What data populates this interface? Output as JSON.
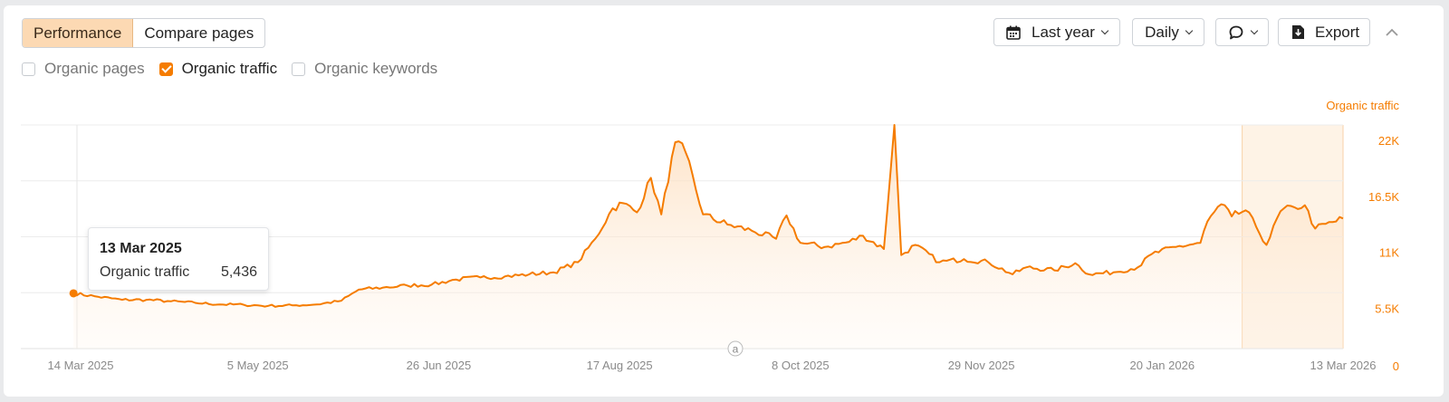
{
  "toolbar": {
    "tabs": [
      {
        "label": "Performance",
        "active": true
      },
      {
        "label": "Compare pages",
        "active": false
      }
    ],
    "period_label": "Last year",
    "interval_label": "Daily",
    "export_label": "Export"
  },
  "metrics": [
    {
      "label": "Organic pages",
      "checked": false
    },
    {
      "label": "Organic traffic",
      "checked": true
    },
    {
      "label": "Organic keywords",
      "checked": false
    }
  ],
  "tooltip": {
    "date": "13 Mar 2025",
    "metric": "Organic traffic",
    "value": "5,436"
  },
  "annotation_marker": "a",
  "colors": {
    "accent": "#f57c00",
    "fill": "#fde3c6",
    "grid": "#ececec"
  },
  "chart_data": {
    "type": "area",
    "series": [
      {
        "name": "Organic traffic"
      }
    ],
    "y_axis_title": "Organic traffic",
    "y_axis_position": "right",
    "ylim": [
      0,
      22000
    ],
    "y_ticks": [
      0,
      5500,
      11000,
      16500,
      22000
    ],
    "y_tick_labels": [
      "0",
      "5.5K",
      "11K",
      "16.5K",
      "22K"
    ],
    "x_tick_labels": [
      "14 Mar 2025",
      "5 May 2025",
      "26 Jun 2025",
      "17 Aug 2025",
      "8 Oct 2025",
      "29 Nov 2025",
      "20 Jan 2026",
      "13 Mar 2026"
    ],
    "x_tick_dates": [
      "2025-03-14",
      "2025-05-05",
      "2025-06-26",
      "2025-08-17",
      "2025-10-08",
      "2025-11-29",
      "2026-01-20",
      "2026-03-13"
    ],
    "highlight_range": [
      "2026-02-12",
      "2026-03-13"
    ],
    "points": [
      [
        "2025-03-13",
        5436
      ],
      [
        "2025-03-20",
        5100
      ],
      [
        "2025-03-27",
        4800
      ],
      [
        "2025-04-03",
        4800
      ],
      [
        "2025-04-10",
        4650
      ],
      [
        "2025-04-17",
        4500
      ],
      [
        "2025-04-24",
        4350
      ],
      [
        "2025-05-01",
        4300
      ],
      [
        "2025-05-08",
        4200
      ],
      [
        "2025-05-15",
        4250
      ],
      [
        "2025-05-22",
        4350
      ],
      [
        "2025-05-29",
        4700
      ],
      [
        "2025-06-03",
        5800
      ],
      [
        "2025-06-10",
        6000
      ],
      [
        "2025-06-17",
        6200
      ],
      [
        "2025-06-24",
        6300
      ],
      [
        "2025-07-01",
        6800
      ],
      [
        "2025-07-08",
        7000
      ],
      [
        "2025-07-15",
        7100
      ],
      [
        "2025-07-22",
        7300
      ],
      [
        "2025-07-29",
        7500
      ],
      [
        "2025-08-05",
        8500
      ],
      [
        "2025-08-10",
        10800
      ],
      [
        "2025-08-15",
        13800
      ],
      [
        "2025-08-18",
        14300
      ],
      [
        "2025-08-22",
        13400
      ],
      [
        "2025-08-26",
        16800
      ],
      [
        "2025-08-29",
        13200
      ],
      [
        "2025-09-02",
        20300
      ],
      [
        "2025-09-05",
        19300
      ],
      [
        "2025-09-10",
        13200
      ],
      [
        "2025-09-17",
        12200
      ],
      [
        "2025-09-24",
        11600
      ],
      [
        "2025-10-01",
        10800
      ],
      [
        "2025-10-04",
        13100
      ],
      [
        "2025-10-08",
        10400
      ],
      [
        "2025-10-15",
        10000
      ],
      [
        "2025-10-22",
        10500
      ],
      [
        "2025-10-26",
        11100
      ],
      [
        "2025-11-01",
        9800
      ],
      [
        "2025-11-04",
        22000
      ],
      [
        "2025-11-06",
        9200
      ],
      [
        "2025-11-10",
        10200
      ],
      [
        "2025-11-17",
        8500
      ],
      [
        "2025-11-24",
        8800
      ],
      [
        "2025-12-01",
        8500
      ],
      [
        "2025-12-08",
        7300
      ],
      [
        "2025-12-12",
        8000
      ],
      [
        "2025-12-20",
        7700
      ],
      [
        "2025-12-26",
        8400
      ],
      [
        "2025-12-30",
        7300
      ],
      [
        "2026-01-06",
        7500
      ],
      [
        "2026-01-13",
        8000
      ],
      [
        "2026-01-17",
        9300
      ],
      [
        "2026-01-24",
        10000
      ],
      [
        "2026-01-31",
        10400
      ],
      [
        "2026-02-02",
        12500
      ],
      [
        "2026-02-06",
        14200
      ],
      [
        "2026-02-09",
        13000
      ],
      [
        "2026-02-13",
        13600
      ],
      [
        "2026-02-16",
        12000
      ],
      [
        "2026-02-19",
        10200
      ],
      [
        "2026-02-23",
        13500
      ],
      [
        "2026-02-27",
        13900
      ],
      [
        "2026-03-02",
        14100
      ],
      [
        "2026-03-05",
        11800
      ],
      [
        "2026-03-13",
        12800
      ]
    ]
  }
}
